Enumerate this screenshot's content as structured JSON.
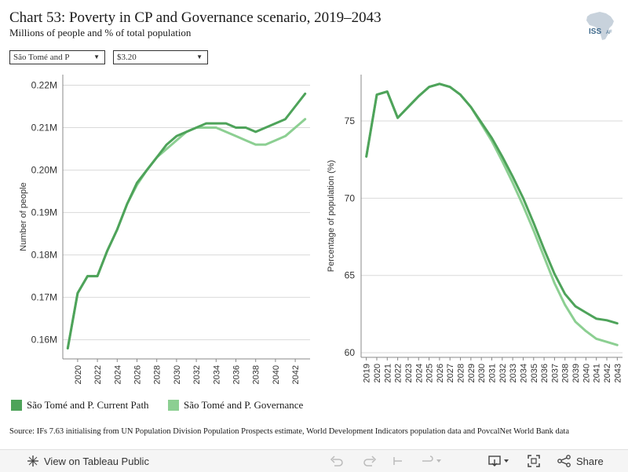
{
  "header": {
    "title": "Chart 53: Poverty in CP and Governance scenario, 2019–2043",
    "subtitle": "Millions of people and % of total population",
    "logo_text": "ISS",
    "logo_sub": "AF"
  },
  "filters": {
    "country": "São Tomé and P",
    "poverty_line": "$3.20"
  },
  "colors": {
    "current_path": "#4ea35a",
    "governance": "#8ccf92",
    "grid": "#d9d9d9",
    "axis": "#888888"
  },
  "chart_data": [
    {
      "type": "line",
      "ylabel": "Number of people",
      "xlabel": "",
      "x": [
        2019,
        2020,
        2021,
        2022,
        2023,
        2024,
        2025,
        2026,
        2027,
        2028,
        2029,
        2030,
        2031,
        2032,
        2033,
        2034,
        2035,
        2036,
        2037,
        2038,
        2039,
        2040,
        2041,
        2042,
        2043
      ],
      "x_ticks": [
        2020,
        2022,
        2024,
        2026,
        2028,
        2030,
        2032,
        2034,
        2036,
        2038,
        2040,
        2042
      ],
      "ylim": [
        0.1555,
        0.2225
      ],
      "y_ticks": [
        0.16,
        0.17,
        0.18,
        0.19,
        0.2,
        0.21,
        0.22
      ],
      "y_tick_labels": [
        "0.16M",
        "0.17M",
        "0.18M",
        "0.19M",
        "0.20M",
        "0.21M",
        "0.22M"
      ],
      "grid": true,
      "series": [
        {
          "name": "São Tomé and P. Current Path",
          "values": [
            0.158,
            0.171,
            0.175,
            0.175,
            0.181,
            0.186,
            0.192,
            0.197,
            0.2,
            0.203,
            0.206,
            0.208,
            0.209,
            0.21,
            0.211,
            0.211,
            0.211,
            0.21,
            0.21,
            0.209,
            0.21,
            0.211,
            0.212,
            0.215,
            0.218
          ]
        },
        {
          "name": "São Tomé and P. Governance",
          "values": [
            0.158,
            0.171,
            0.175,
            0.175,
            0.181,
            0.186,
            0.192,
            0.1965,
            0.2,
            0.203,
            0.205,
            0.207,
            0.209,
            0.21,
            0.21,
            0.21,
            0.209,
            0.208,
            0.207,
            0.206,
            0.206,
            0.207,
            0.208,
            0.21,
            0.212
          ]
        }
      ]
    },
    {
      "type": "line",
      "ylabel": "Percentage of population (%)",
      "xlabel": "",
      "x": [
        2019,
        2020,
        2021,
        2022,
        2023,
        2024,
        2025,
        2026,
        2027,
        2028,
        2029,
        2030,
        2031,
        2032,
        2033,
        2034,
        2035,
        2036,
        2037,
        2038,
        2039,
        2040,
        2041,
        2042,
        2043
      ],
      "x_ticks": [
        2019,
        2020,
        2021,
        2022,
        2023,
        2024,
        2025,
        2026,
        2027,
        2028,
        2029,
        2030,
        2031,
        2032,
        2033,
        2034,
        2035,
        2036,
        2037,
        2038,
        2039,
        2040,
        2041,
        2042,
        2043
      ],
      "ylim": [
        59.7,
        78.0
      ],
      "y_ticks": [
        60,
        65,
        70,
        75
      ],
      "y_tick_labels": [
        "60",
        "65",
        "70",
        "75"
      ],
      "grid": true,
      "series": [
        {
          "name": "São Tomé and P. Current Path",
          "values": [
            72.7,
            76.7,
            76.9,
            75.2,
            75.9,
            76.6,
            77.2,
            77.4,
            77.2,
            76.7,
            75.9,
            74.9,
            73.9,
            72.7,
            71.4,
            70.0,
            68.4,
            66.7,
            65.1,
            63.8,
            63.0,
            62.6,
            62.2,
            62.1,
            61.9
          ]
        },
        {
          "name": "São Tomé and P. Governance",
          "values": [
            72.7,
            76.7,
            76.9,
            75.2,
            75.9,
            76.6,
            77.2,
            77.4,
            77.2,
            76.7,
            75.9,
            74.8,
            73.7,
            72.4,
            71.0,
            69.5,
            67.9,
            66.2,
            64.5,
            63.1,
            62.0,
            61.4,
            60.9,
            60.7,
            60.5
          ]
        }
      ]
    }
  ],
  "legend": [
    {
      "label": "São Tomé and P. Current Path"
    },
    {
      "label": "São Tomé and P. Governance"
    }
  ],
  "source": "Source: IFs 7.63 initialising from UN Population Division Population Prospects estimate, World Development Indicators population data and PovcalNet World Bank data",
  "toolbar": {
    "view_label": "View on Tableau Public",
    "share_label": "Share"
  }
}
